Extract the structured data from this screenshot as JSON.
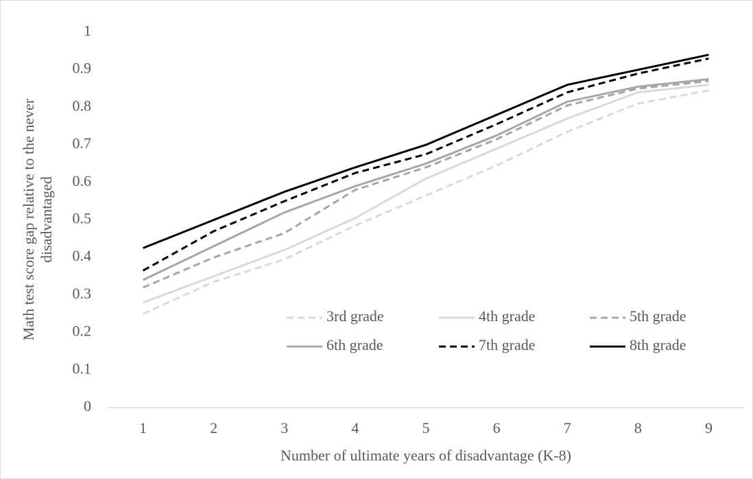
{
  "chart_data": {
    "type": "line",
    "xlabel": "Number of ultimate years of disadvantage (K-8)",
    "ylabel": [
      "Math test score gap relative to the never",
      "disadvantaged"
    ],
    "categories": [
      "1",
      "2",
      "3",
      "4",
      "5",
      "6",
      "7",
      "8",
      "9"
    ],
    "ylim": [
      0,
      1
    ],
    "yticks": [
      0,
      0.1,
      0.2,
      0.3,
      0.4,
      0.5,
      0.6,
      0.7,
      0.8,
      0.9,
      1
    ],
    "grid": false,
    "series": [
      {
        "name": "3rd grade",
        "color": "#d9d9d9",
        "dashed": true,
        "values": [
          0.25,
          0.335,
          0.395,
          0.485,
          0.565,
          0.645,
          0.735,
          0.81,
          0.845
        ]
      },
      {
        "name": "4th grade",
        "color": "#d9d9d9",
        "dashed": false,
        "values": [
          0.28,
          0.35,
          0.42,
          0.505,
          0.61,
          0.69,
          0.77,
          0.84,
          0.86
        ]
      },
      {
        "name": "5th grade",
        "color": "#a6a6a6",
        "dashed": true,
        "values": [
          0.32,
          0.4,
          0.465,
          0.58,
          0.64,
          0.715,
          0.805,
          0.85,
          0.87
        ]
      },
      {
        "name": "6th grade",
        "color": "#a6a6a6",
        "dashed": false,
        "values": [
          0.34,
          0.43,
          0.52,
          0.59,
          0.65,
          0.725,
          0.815,
          0.855,
          0.875
        ]
      },
      {
        "name": "7th grade",
        "color": "#000000",
        "dashed": true,
        "values": [
          0.365,
          0.47,
          0.55,
          0.625,
          0.675,
          0.755,
          0.84,
          0.89,
          0.93
        ]
      },
      {
        "name": "8th grade",
        "color": "#000000",
        "dashed": false,
        "values": [
          0.425,
          0.5,
          0.575,
          0.64,
          0.7,
          0.78,
          0.86,
          0.9,
          0.94
        ]
      }
    ]
  }
}
